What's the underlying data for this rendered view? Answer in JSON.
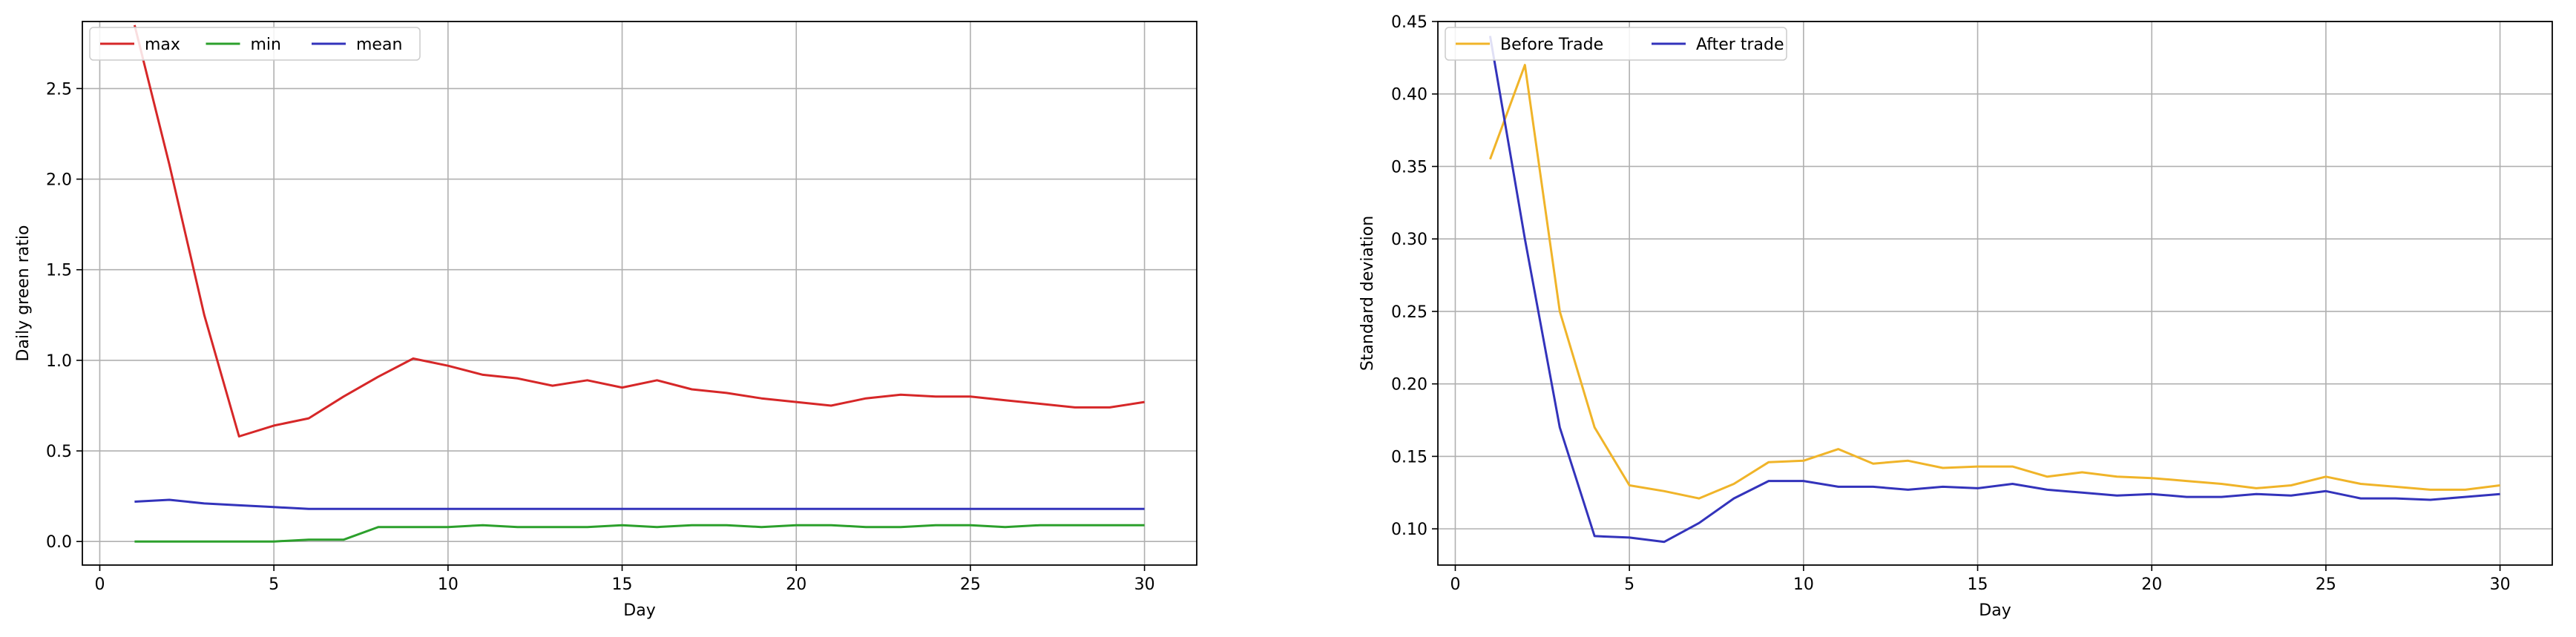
{
  "chart_data": [
    {
      "type": "line",
      "xlabel": "Day",
      "ylabel": "Daily green ratio",
      "xlim": [
        -0.5,
        31.5
      ],
      "ylim": [
        -0.13,
        2.87
      ],
      "xticks": [
        0,
        5,
        10,
        15,
        20,
        25,
        30
      ],
      "yticks": [
        0.0,
        0.5,
        1.0,
        1.5,
        2.0,
        2.5
      ],
      "xtick_labels": [
        "0",
        "5",
        "10",
        "15",
        "20",
        "25",
        "30"
      ],
      "ytick_labels": [
        "0.0",
        "0.5",
        "1.0",
        "1.5",
        "2.0",
        "2.5"
      ],
      "grid": true,
      "legend": "top-left",
      "x": [
        1,
        2,
        3,
        4,
        5,
        6,
        7,
        8,
        9,
        10,
        11,
        12,
        13,
        14,
        15,
        16,
        17,
        18,
        19,
        20,
        21,
        22,
        23,
        24,
        25,
        26,
        27,
        28,
        29,
        30
      ],
      "series": [
        {
          "name": "max",
          "color": "#d62728",
          "values": [
            2.85,
            2.08,
            1.25,
            0.58,
            0.64,
            0.68,
            0.8,
            0.91,
            1.01,
            0.97,
            0.92,
            0.9,
            0.86,
            0.89,
            0.85,
            0.89,
            0.84,
            0.82,
            0.79,
            0.77,
            0.75,
            0.79,
            0.81,
            0.8,
            0.8,
            0.78,
            0.76,
            0.74,
            0.74,
            0.77
          ]
        },
        {
          "name": "min",
          "color": "#2ca02c",
          "values": [
            0.0,
            0.0,
            0.0,
            0.0,
            0.0,
            0.01,
            0.01,
            0.08,
            0.08,
            0.08,
            0.09,
            0.08,
            0.08,
            0.08,
            0.09,
            0.08,
            0.09,
            0.09,
            0.08,
            0.09,
            0.09,
            0.08,
            0.08,
            0.09,
            0.09,
            0.08,
            0.09,
            0.09,
            0.09,
            0.09
          ]
        },
        {
          "name": "mean",
          "color": "#3333bb",
          "values": [
            0.22,
            0.23,
            0.21,
            0.2,
            0.19,
            0.18,
            0.18,
            0.18,
            0.18,
            0.18,
            0.18,
            0.18,
            0.18,
            0.18,
            0.18,
            0.18,
            0.18,
            0.18,
            0.18,
            0.18,
            0.18,
            0.18,
            0.18,
            0.18,
            0.18,
            0.18,
            0.18,
            0.18,
            0.18,
            0.18
          ]
        }
      ]
    },
    {
      "type": "line",
      "xlabel": "Day",
      "ylabel": "Standard deviation",
      "xlim": [
        -0.5,
        31.5
      ],
      "ylim": [
        0.075,
        0.45
      ],
      "xticks": [
        0,
        5,
        10,
        15,
        20,
        25,
        30
      ],
      "yticks": [
        0.1,
        0.15,
        0.2,
        0.25,
        0.3,
        0.35,
        0.4,
        0.45
      ],
      "xtick_labels": [
        "0",
        "5",
        "10",
        "15",
        "20",
        "25",
        "30"
      ],
      "ytick_labels": [
        "0.10",
        "0.15",
        "0.20",
        "0.25",
        "0.30",
        "0.35",
        "0.40",
        "0.45"
      ],
      "grid": true,
      "legend": "top-left",
      "x": [
        1,
        2,
        3,
        4,
        5,
        6,
        7,
        8,
        9,
        10,
        11,
        12,
        13,
        14,
        15,
        16,
        17,
        18,
        19,
        20,
        21,
        22,
        23,
        24,
        25,
        26,
        27,
        28,
        29,
        30
      ],
      "series": [
        {
          "name": "Before Trade",
          "color": "#f0b429",
          "values": [
            0.355,
            0.42,
            0.25,
            0.17,
            0.13,
            0.126,
            0.121,
            0.131,
            0.146,
            0.147,
            0.155,
            0.145,
            0.147,
            0.142,
            0.143,
            0.143,
            0.136,
            0.139,
            0.136,
            0.135,
            0.133,
            0.131,
            0.128,
            0.13,
            0.136,
            0.131,
            0.129,
            0.127,
            0.127,
            0.13
          ]
        },
        {
          "name": "After trade",
          "color": "#3333bb",
          "values": [
            0.44,
            0.3,
            0.17,
            0.095,
            0.094,
            0.091,
            0.104,
            0.121,
            0.133,
            0.133,
            0.129,
            0.129,
            0.127,
            0.129,
            0.128,
            0.131,
            0.127,
            0.125,
            0.123,
            0.124,
            0.122,
            0.122,
            0.124,
            0.123,
            0.126,
            0.121,
            0.121,
            0.12,
            0.122,
            0.124
          ]
        }
      ]
    }
  ]
}
